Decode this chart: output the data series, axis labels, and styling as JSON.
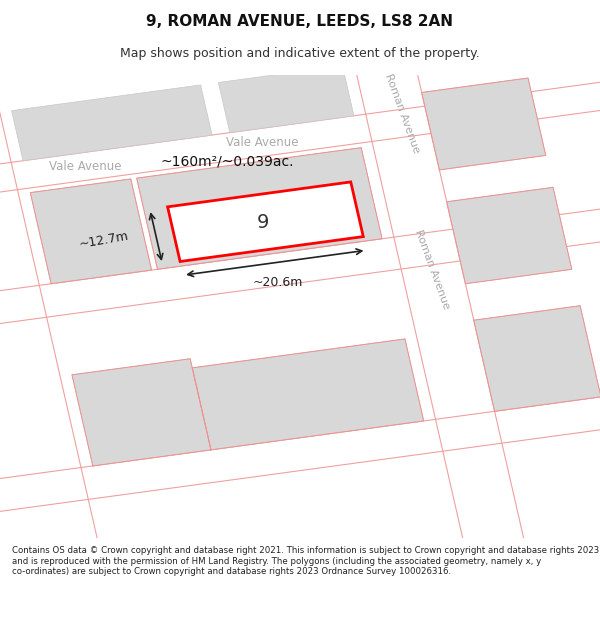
{
  "title": "9, ROMAN AVENUE, LEEDS, LS8 2AN",
  "subtitle": "Map shows position and indicative extent of the property.",
  "footer": "Contains OS data © Crown copyright and database right 2021. This information is subject to Crown copyright and database rights 2023 and is reproduced with the permission of HM Land Registry. The polygons (including the associated geometry, namely x, y co-ordinates) are subject to Crown copyright and database rights 2023 Ordnance Survey 100026316.",
  "background_color": "#f5f5f5",
  "map_bg": "#ffffff",
  "road_line_color": "#f0a0a0",
  "street_label_color": "#aaaaaa",
  "width_label": "~20.6m",
  "height_label": "~12.7m",
  "area_label": "~160m²/~0.039ac.",
  "number_label": "9"
}
